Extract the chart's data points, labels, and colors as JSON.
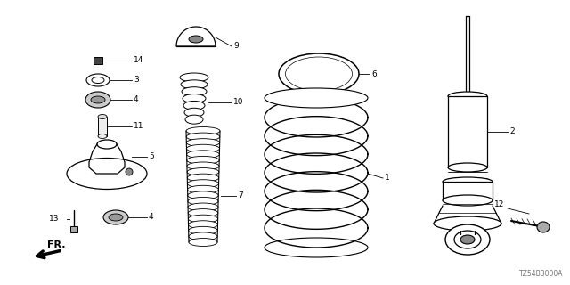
{
  "bg_color": "#ffffff",
  "fig_width": 6.4,
  "fig_height": 3.2,
  "dpi": 100,
  "part_number_text": "TZ54B3000A"
}
